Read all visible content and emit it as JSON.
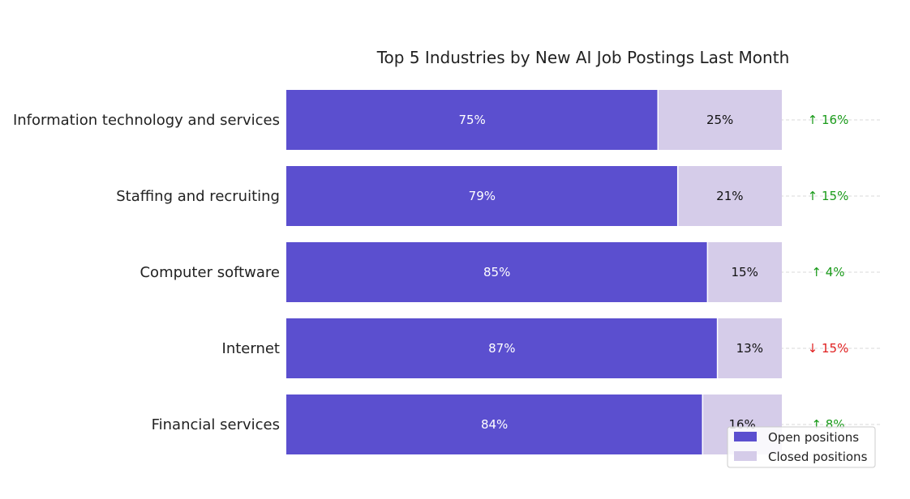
{
  "chart_data": {
    "type": "bar",
    "orientation": "horizontal",
    "stacked": true,
    "title": "Top 5 Industries by New AI Job Postings Last Month",
    "categories": [
      "Information technology and services",
      "Staffing and recruiting",
      "Computer software",
      "Internet",
      "Financial services"
    ],
    "series": [
      {
        "name": "Open positions",
        "values": [
          75,
          79,
          85,
          87,
          84
        ],
        "labels": [
          "75%",
          "79%",
          "85%",
          "87%",
          "84%"
        ],
        "color": "#5b4fcf"
      },
      {
        "name": "Closed positions",
        "values": [
          25,
          21,
          15,
          13,
          16
        ],
        "labels": [
          "25%",
          "21%",
          "15%",
          "13%",
          "16%"
        ],
        "color": "#d5cce9"
      }
    ],
    "changes": [
      {
        "label": "↑ 16%",
        "direction": "up"
      },
      {
        "label": "↑ 15%",
        "direction": "up"
      },
      {
        "label": "↑ 4%",
        "direction": "up"
      },
      {
        "label": "↓ 15%",
        "direction": "down"
      },
      {
        "label": "↑ 8%",
        "direction": "up"
      }
    ],
    "colors": {
      "up": "#1a9b1a",
      "down": "#e02020"
    },
    "xlim": [
      0,
      100
    ],
    "grid": "horizontal dashed",
    "legend": "bottom-right"
  }
}
